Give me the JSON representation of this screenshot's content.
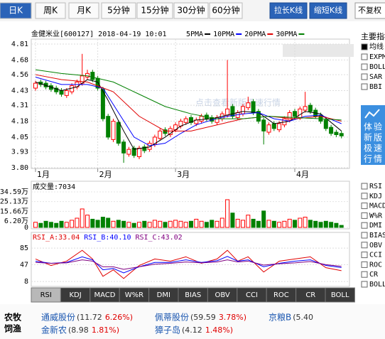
{
  "toolbar": {
    "periods": [
      "日K",
      "周K",
      "月K",
      "5分钟",
      "15分钟",
      "30分钟",
      "60分钟"
    ],
    "selected": 0,
    "buttons": [
      "拉长K线",
      "缩短K线"
    ],
    "adjust": "不复权"
  },
  "chart": {
    "title": "金健米业[600127] 2018-04-19 10:01",
    "watermark": "点击查看新版极速行情",
    "up_color": "#ff0000",
    "down_color": "#008000",
    "ylim": [
      3.8,
      4.81
    ],
    "yticks": [
      4.81,
      4.68,
      4.56,
      4.43,
      4.31,
      4.18,
      4.05,
      3.93,
      {
        "value": 3.8,
        "label": "3.80"
      }
    ],
    "months": [
      "1月",
      "2月",
      "3月",
      "4月"
    ],
    "month_start_index": [
      0,
      12,
      27,
      50
    ],
    "candles": {
      "open": [
        4.45,
        4.5,
        4.49,
        4.47,
        4.45,
        4.43,
        4.39,
        4.42,
        4.46,
        4.49,
        4.54,
        4.58,
        4.53,
        4.44,
        4.22,
        4.03,
        4.17,
        4.01,
        3.91,
        3.96,
        3.89,
        3.97,
        3.95,
        3.99,
        4.04,
        4.11,
        4.07,
        4.11,
        4.14,
        4.17,
        4.21,
        4.16,
        4.18,
        4.23,
        4.21,
        4.17,
        4.2,
        4.23,
        4.3,
        4.21,
        4.24,
        4.29,
        4.34,
        4.26,
        4.19,
        4.09,
        4.16,
        4.11,
        4.15,
        4.19,
        4.26,
        4.21,
        4.27,
        4.31,
        4.27,
        4.23,
        4.19,
        4.13,
        4.09,
        4.08
      ],
      "high": [
        4.51,
        4.52,
        4.51,
        4.49,
        4.47,
        4.45,
        4.45,
        4.49,
        4.52,
        4.73,
        4.6,
        4.6,
        4.55,
        4.46,
        4.24,
        4.2,
        4.19,
        4.03,
        3.97,
        3.98,
        3.98,
        3.99,
        4.02,
        4.07,
        4.12,
        4.13,
        4.14,
        4.17,
        4.2,
        4.22,
        4.23,
        4.21,
        4.24,
        4.25,
        4.23,
        4.23,
        4.26,
        4.68,
        4.32,
        4.27,
        4.32,
        4.38,
        4.36,
        4.28,
        4.21,
        4.17,
        4.18,
        4.18,
        4.22,
        4.27,
        4.28,
        4.3,
        4.42,
        4.33,
        4.29,
        4.25,
        4.21,
        4.15,
        4.11,
        4.1
      ],
      "low": [
        4.43,
        4.46,
        4.44,
        4.42,
        4.4,
        4.38,
        4.37,
        4.4,
        4.44,
        4.47,
        4.52,
        4.5,
        4.43,
        4.18,
        4.03,
        4.01,
        3.98,
        3.84,
        3.89,
        3.88,
        3.87,
        3.92,
        3.93,
        3.97,
        4.02,
        4.06,
        4.05,
        4.09,
        4.12,
        4.15,
        4.15,
        4.14,
        4.16,
        4.18,
        4.16,
        4.15,
        4.18,
        4.21,
        4.2,
        4.19,
        4.22,
        4.27,
        4.23,
        4.16,
        3.99,
        4.07,
        4.1,
        4.09,
        4.13,
        4.17,
        4.2,
        4.19,
        4.25,
        4.24,
        4.2,
        4.16,
        4.1,
        4.06,
        4.05,
        4.04
      ],
      "close": [
        4.49,
        4.48,
        4.46,
        4.44,
        4.42,
        4.4,
        4.43,
        4.47,
        4.5,
        4.55,
        4.57,
        4.52,
        4.45,
        4.2,
        4.05,
        4.18,
        4.0,
        3.92,
        3.95,
        3.9,
        3.96,
        3.94,
        4.0,
        4.05,
        4.1,
        4.08,
        4.12,
        4.15,
        4.18,
        4.2,
        4.17,
        4.19,
        4.22,
        4.2,
        4.18,
        4.21,
        4.24,
        4.28,
        4.22,
        4.25,
        4.3,
        4.33,
        4.25,
        4.18,
        4.1,
        4.15,
        4.12,
        4.16,
        4.2,
        4.25,
        4.22,
        4.28,
        4.3,
        4.26,
        4.22,
        4.18,
        4.12,
        4.08,
        4.07,
        4.06
      ]
    },
    "ma": [
      {
        "name": "5PMA",
        "color": "#000000",
        "x": [
          0,
          5,
          8,
          10,
          12,
          14,
          17,
          19,
          22,
          25,
          28,
          31,
          34,
          37,
          40,
          43,
          46,
          49,
          52,
          55,
          59
        ],
        "values": [
          4.5,
          4.43,
          4.46,
          4.52,
          4.5,
          4.35,
          4.1,
          3.95,
          3.97,
          4.05,
          4.14,
          4.19,
          4.2,
          4.23,
          4.26,
          4.25,
          4.16,
          4.18,
          4.26,
          4.24,
          4.1
        ]
      },
      {
        "name": "10PMA",
        "color": "#0000ff",
        "x": [
          0,
          5,
          10,
          13,
          16,
          19,
          22,
          25,
          28,
          31,
          34,
          37,
          40,
          43,
          46,
          49,
          52,
          55,
          59
        ],
        "values": [
          4.54,
          4.48,
          4.48,
          4.45,
          4.25,
          4.05,
          3.98,
          4.0,
          4.08,
          4.15,
          4.19,
          4.22,
          4.24,
          4.25,
          4.2,
          4.18,
          4.22,
          4.23,
          4.16
        ]
      },
      {
        "name": "20PMA",
        "color": "#e00000",
        "x": [
          0,
          5,
          10,
          15,
          20,
          25,
          30,
          35,
          40,
          45,
          50,
          55,
          59
        ],
        "values": [
          4.56,
          4.52,
          4.5,
          4.42,
          4.22,
          4.1,
          4.1,
          4.15,
          4.2,
          4.22,
          4.2,
          4.22,
          4.18
        ]
      },
      {
        "name": "30PMA",
        "color": "#008000",
        "x": [
          0,
          5,
          10,
          15,
          20,
          25,
          30,
          35,
          40,
          45,
          50,
          55,
          59
        ],
        "values": [
          4.6,
          4.57,
          4.55,
          4.5,
          4.4,
          4.3,
          4.24,
          4.2,
          4.2,
          4.22,
          4.21,
          4.2,
          4.19
        ]
      }
    ]
  },
  "volume": {
    "header": "成交量:7034",
    "ylim": [
      0,
      34.59
    ],
    "yticks": [
      {
        "value": 34.59,
        "label": "34.59万"
      },
      {
        "value": 25.13,
        "label": "25.13万"
      },
      {
        "value": 15.66,
        "label": "15.66万"
      },
      {
        "value": 6.2,
        "label": "6.20万"
      },
      0
    ],
    "values": [
      5,
      4,
      6,
      5,
      4,
      6,
      5,
      7,
      9,
      18,
      12,
      8,
      7,
      10,
      9,
      6,
      7,
      6,
      5,
      4,
      5,
      6,
      5,
      7,
      6,
      5,
      6,
      7,
      6,
      5,
      6,
      8,
      6,
      5,
      7,
      6,
      9,
      27,
      14,
      8,
      7,
      12,
      8,
      6,
      16,
      7,
      6,
      5,
      6,
      8,
      7,
      9,
      10,
      7,
      6,
      5,
      6,
      5,
      4,
      2
    ]
  },
  "rsi": {
    "ylim": [
      0,
      100
    ],
    "yticks": [
      85,
      47,
      8
    ],
    "series": [
      {
        "name": "RSI_A:33.04",
        "color": "#e00000",
        "x": [
          0,
          3,
          6,
          9,
          11,
          13,
          15,
          17,
          20,
          23,
          26,
          29,
          32,
          35,
          37,
          39,
          41,
          44,
          47,
          50,
          53,
          56,
          59
        ],
        "values": [
          60,
          45,
          55,
          80,
          60,
          20,
          35,
          15,
          45,
          60,
          55,
          65,
          50,
          60,
          80,
          55,
          65,
          30,
          55,
          60,
          65,
          40,
          33.04
        ]
      },
      {
        "name": "RSI_B:40.10",
        "color": "#0000ff",
        "x": [
          0,
          3,
          6,
          9,
          11,
          13,
          15,
          17,
          20,
          23,
          26,
          29,
          32,
          35,
          37,
          39,
          41,
          44,
          47,
          50,
          53,
          56,
          59
        ],
        "values": [
          55,
          50,
          52,
          65,
          58,
          35,
          38,
          28,
          42,
          52,
          52,
          58,
          52,
          56,
          66,
          55,
          58,
          42,
          50,
          55,
          58,
          45,
          40.1
        ]
      },
      {
        "name": "RSI_C:43.02",
        "color": "#800080",
        "x": [
          0,
          3,
          6,
          9,
          11,
          13,
          15,
          17,
          20,
          23,
          26,
          29,
          32,
          35,
          37,
          39,
          41,
          44,
          47,
          50,
          53,
          56,
          59
        ],
        "values": [
          52,
          50,
          51,
          58,
          55,
          42,
          42,
          36,
          42,
          48,
          50,
          53,
          51,
          53,
          58,
          53,
          55,
          46,
          49,
          51,
          54,
          47,
          43.02
        ]
      }
    ]
  },
  "tabs": {
    "items": [
      "RSI",
      "KDJ",
      "MACD",
      "W%R",
      "DMI",
      "BIAS",
      "OBV",
      "CCI",
      "ROC",
      "CR",
      "BOLL"
    ],
    "selected": 0
  },
  "sidebar": {
    "main_title": "主要指标",
    "main": [
      "均线",
      "EXPMA",
      "BOLL",
      "SAR",
      "BBI"
    ],
    "main_checked": 0,
    "promo": [
      "体验",
      "新版",
      "极速",
      "行情"
    ],
    "sub": [
      "RSI",
      "KDJ",
      "MACD",
      "W%R",
      "DMI",
      "BIAS",
      "OBV",
      "CCI",
      "ROC",
      "CR",
      "BOLL"
    ]
  },
  "ticker": {
    "industry": [
      "农牧",
      "饲渔"
    ],
    "stocks": [
      {
        "name": "通威股份",
        "price": "(11.72",
        "change": "6.26%)"
      },
      {
        "name": "佩蒂股份",
        "price": "(59.59",
        "change": "3.78%)"
      },
      {
        "name": "京粮B",
        "price": "(5.40"
      },
      {
        "name": "金新农",
        "price": "(8.98",
        "change": "1.81%)"
      },
      {
        "name": "獐子岛",
        "price": "(4.12",
        "change": "1.48%)"
      }
    ]
  }
}
